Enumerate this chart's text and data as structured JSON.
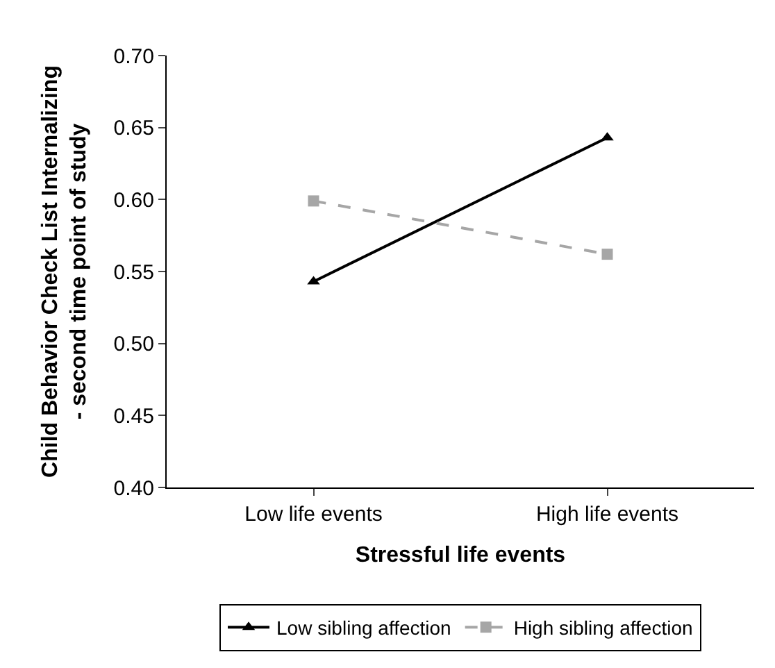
{
  "chart_data": {
    "type": "line",
    "xlabel": "Stressful life events",
    "ylabel": "Child Behavior Check List Internalizing\n- second time point of study",
    "categories": [
      "Low life events",
      "High life events"
    ],
    "series": [
      {
        "name": "Low sibling affection",
        "color": "#000000",
        "values": [
          0.543,
          0.643
        ],
        "marker": "triangle",
        "line_style": "solid"
      },
      {
        "name": "High sibling affection",
        "color": "#a6a6a6",
        "values": [
          0.599,
          0.562
        ],
        "marker": "square",
        "line_style": "dashed"
      }
    ],
    "ylim": [
      0.4,
      0.7
    ],
    "yticks": [
      {
        "value": 0.4,
        "label": "0.40"
      },
      {
        "value": 0.45,
        "label": "0.45"
      },
      {
        "value": 0.5,
        "label": "0.50"
      },
      {
        "value": 0.55,
        "label": "0.55"
      },
      {
        "value": 0.6,
        "label": "0.60"
      },
      {
        "value": 0.65,
        "label": "0.65"
      },
      {
        "value": 0.7,
        "label": "0.70"
      }
    ],
    "legend": "bottom"
  }
}
